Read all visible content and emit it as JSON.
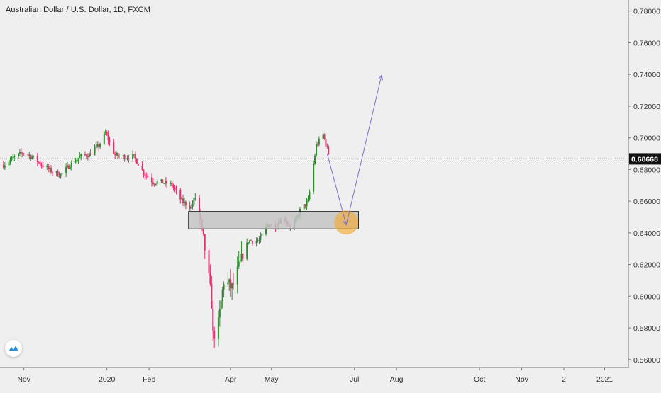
{
  "header": {
    "symbol_title": "Australian Dollar / U.S. Dollar, 1D, FXCM"
  },
  "colors": {
    "background": "#efefef",
    "up_candle": "#2e8b2e",
    "down_candle": "#e0336a",
    "axis_text": "#333333",
    "zone_fill": "#c4c4c4",
    "projection_arrow": "#7b6fcf",
    "target_circle": "#f5a623",
    "price_label_bg": "#111111"
  },
  "chart_data": {
    "type": "candlestick",
    "title": "Australian Dollar / U.S. Dollar, 1D, FXCM",
    "ylim": [
      0.555,
      0.787
    ],
    "y_ticks": [
      0.78,
      0.76,
      0.74,
      0.72,
      0.7,
      0.68,
      0.66,
      0.64,
      0.62,
      0.6,
      0.58,
      0.56
    ],
    "y_tick_labels": [
      "0.78000",
      "0.76000",
      "0.74000",
      "0.72000",
      "0.70000",
      "0.68000",
      "0.66000",
      "0.64000",
      "0.62000",
      "0.60000",
      "0.58000",
      "0.56000"
    ],
    "x_ticks": [
      {
        "label": "Nov",
        "date": "2019-11-01"
      },
      {
        "label": "2020",
        "date": "2020-01-01"
      },
      {
        "label": "Feb",
        "date": "2020-02-01"
      },
      {
        "label": "Apr",
        "date": "2020-04-01"
      },
      {
        "label": "May",
        "date": "2020-05-01"
      },
      {
        "label": "Jul",
        "date": "2020-07-01"
      },
      {
        "label": "Aug",
        "date": "2020-08-01"
      },
      {
        "label": "Oct",
        "date": "2020-10-01"
      },
      {
        "label": "Nov",
        "date": "2020-11-01"
      },
      {
        "label": "2",
        "date": "2020-12-02"
      },
      {
        "label": "2021",
        "date": "2021-01-01"
      }
    ],
    "x_range": [
      "2019-10-16",
      "2021-01-20"
    ],
    "current_price": 0.68668,
    "current_price_label": "0.68668",
    "series": [
      {
        "close_path": [
          [
            "2019-10-17",
            0.683
          ],
          [
            "2019-10-24",
            0.687
          ],
          [
            "2019-10-31",
            0.6905
          ],
          [
            "2019-11-07",
            0.688
          ],
          [
            "2019-11-14",
            0.683
          ],
          [
            "2019-11-21",
            0.679
          ],
          [
            "2019-11-28",
            0.6765
          ],
          [
            "2019-12-05",
            0.683
          ],
          [
            "2019-12-12",
            0.688
          ],
          [
            "2019-12-19",
            0.6895
          ],
          [
            "2019-12-26",
            0.695
          ],
          [
            "2019-12-31",
            0.703
          ],
          [
            "2020-01-07",
            0.689
          ],
          [
            "2020-01-14",
            0.688
          ],
          [
            "2020-01-21",
            0.688
          ],
          [
            "2020-01-28",
            0.678
          ],
          [
            "2020-02-04",
            0.672
          ],
          [
            "2020-02-11",
            0.672
          ],
          [
            "2020-02-18",
            0.67
          ],
          [
            "2020-02-25",
            0.66
          ],
          [
            "2020-03-03",
            0.656
          ],
          [
            "2020-03-07",
            0.665
          ],
          [
            "2020-03-10",
            0.645
          ],
          [
            "2020-03-14",
            0.625
          ],
          [
            "2020-03-18",
            0.596
          ],
          [
            "2020-03-19",
            0.575
          ],
          [
            "2020-03-23",
            0.582
          ],
          [
            "2020-03-27",
            0.61
          ],
          [
            "2020-04-02",
            0.605
          ],
          [
            "2020-04-08",
            0.62
          ],
          [
            "2020-04-14",
            0.635
          ],
          [
            "2020-04-22",
            0.635
          ],
          [
            "2020-04-28",
            0.645
          ],
          [
            "2020-05-04",
            0.645
          ],
          [
            "2020-05-10",
            0.65
          ],
          [
            "2020-05-16",
            0.642
          ],
          [
            "2020-05-22",
            0.654
          ],
          [
            "2020-05-28",
            0.66
          ],
          [
            "2020-06-03",
            0.695
          ],
          [
            "2020-06-08",
            0.702
          ],
          [
            "2020-06-12",
            0.69
          ]
        ]
      }
    ],
    "annotations": {
      "support_zone": {
        "from": "2020-03-01",
        "to": "2020-07-04",
        "y_low": 0.6425,
        "y_high": 0.6535
      },
      "target_circle": {
        "date": "2020-06-25",
        "y": 0.6465
      },
      "projection_arrow": {
        "points": [
          [
            "2020-06-11",
            0.69
          ],
          [
            "2020-06-25",
            0.645
          ],
          [
            "2020-07-21",
            0.7395
          ]
        ]
      }
    }
  }
}
